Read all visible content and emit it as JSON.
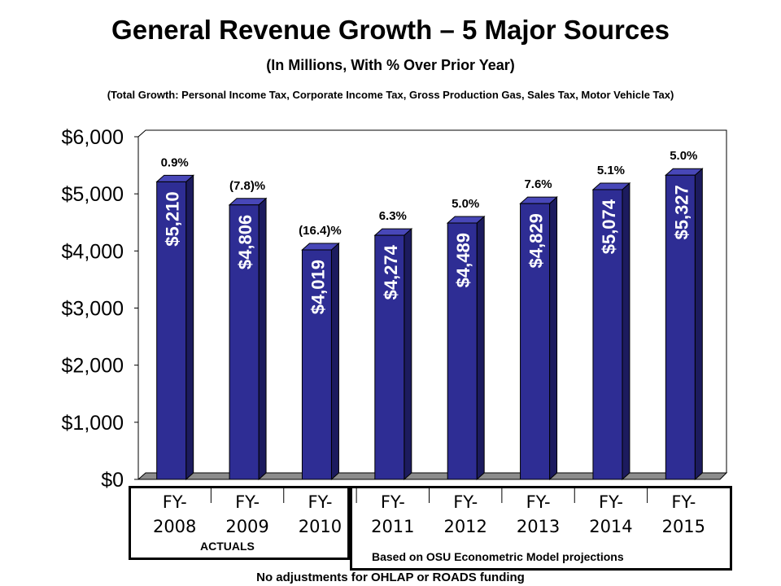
{
  "title": "General Revenue Growth – 5 Major Sources",
  "subtitle": "(In Millions, With % Over Prior Year)",
  "note_top": "(Total Growth: Personal Income Tax, Corporate Income Tax, Gross Production Gas, Sales Tax, Motor Vehicle Tax)",
  "note_bottom": "No adjustments for OHLAP or ROADS funding",
  "actuals_label": "ACTUALS",
  "projection_label": "Based on OSU Econometric Model projections",
  "colors": {
    "bar_front": "#2e2d94",
    "bar_side": "#1c1b5e",
    "bar_top": "#4847b8",
    "floor": "#8c8c8c"
  },
  "chart_data": {
    "type": "bar",
    "categories": [
      [
        "FY-",
        "2008"
      ],
      [
        "FY-",
        "2009"
      ],
      [
        "FY-",
        "2010"
      ],
      [
        "FY-",
        "2011"
      ],
      [
        "FY-",
        "2012"
      ],
      [
        "FY-",
        "2013"
      ],
      [
        "FY-",
        "2014"
      ],
      [
        "FY-",
        "2015"
      ]
    ],
    "values": [
      5210,
      4806,
      4019,
      4274,
      4489,
      4829,
      5074,
      5327
    ],
    "value_labels": [
      "$5,210",
      "$4,806",
      "$4,019",
      "$4,274",
      "$4,489",
      "$4,829",
      "$5,074",
      "$5,327"
    ],
    "growth_labels": [
      "0.9%",
      "(7.8)%",
      "(16.4)%",
      "6.3%",
      "5.0%",
      "7.6%",
      "5.1%",
      "5.0%"
    ],
    "yticks": [
      0,
      1000,
      2000,
      3000,
      4000,
      5000,
      6000
    ],
    "ytick_labels": [
      "$0",
      "$1,000",
      "$2,000",
      "$3,000",
      "$4,000",
      "$5,000",
      "$6,000"
    ],
    "ylim": [
      0,
      6000
    ],
    "grid": false,
    "style": "3d"
  }
}
